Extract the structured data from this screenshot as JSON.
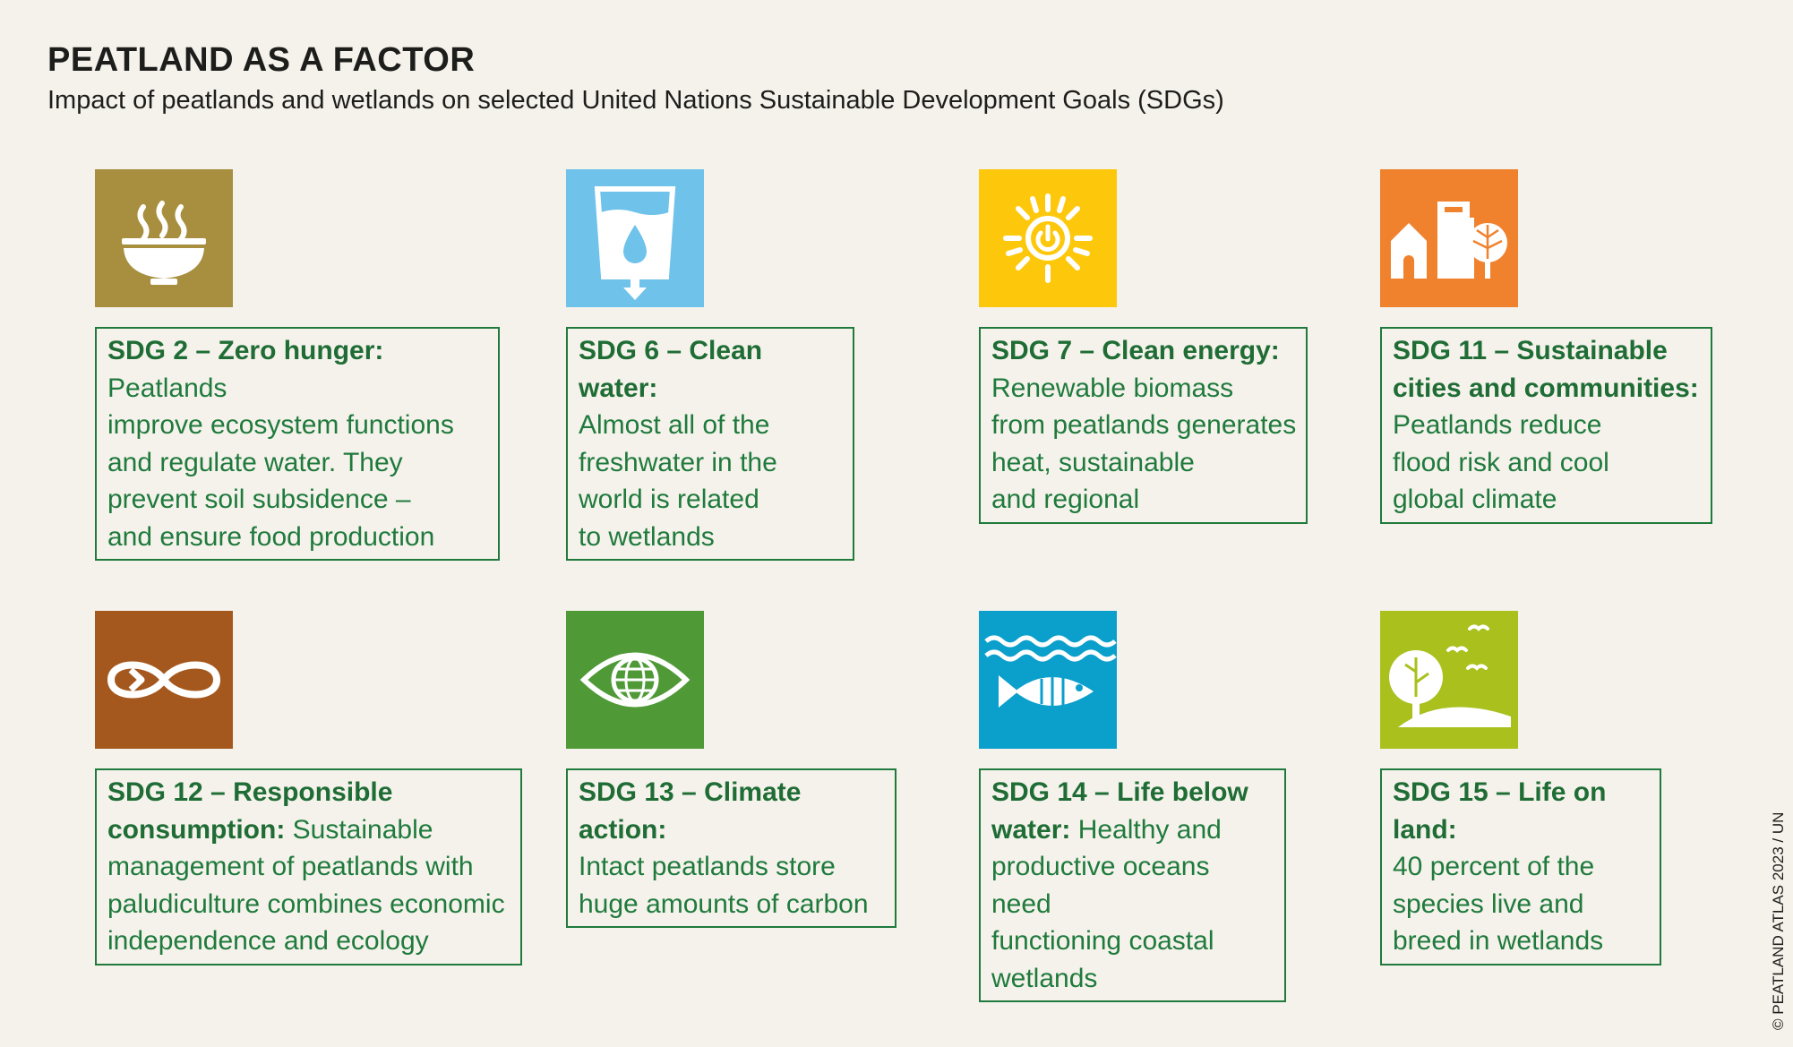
{
  "title": "PEATLAND AS A FACTOR",
  "subtitle": "Impact of peatlands and wetlands on selected United Nations Sustainable Development Goals (SDGs)",
  "sdgs": [
    {
      "id": 2,
      "icon": "food-bowl-icon",
      "color": "#a78f3f",
      "head": "SDG 2 – Zero hunger:",
      "lines": [
        "Peatlands",
        "improve ecosystem functions",
        "and regulate water. They",
        "prevent soil subsidence –",
        "and ensure food production"
      ]
    },
    {
      "id": 6,
      "icon": "water-glass-icon",
      "color": "#6fc2ea",
      "head": "SDG 6 – Clean water:",
      "lines": [
        "Almost all of the",
        "freshwater in the",
        "world is related",
        "to wetlands"
      ]
    },
    {
      "id": 7,
      "icon": "sun-power-icon",
      "color": "#fdc80c",
      "head": "SDG 7 – Clean energy:",
      "lines": [
        "Renewable biomass",
        "from peatlands generates",
        "heat, sustainable",
        "and regional"
      ]
    },
    {
      "id": 11,
      "icon": "city-icon",
      "color": "#f0812d",
      "head": "SDG 11 – Sustainable",
      "head2": "cities and communities:",
      "lines": [
        "Peatlands reduce",
        "flood risk and cool",
        "global climate"
      ]
    },
    {
      "id": 12,
      "icon": "infinity-loop-icon",
      "color": "#a5581e",
      "head": "SDG 12 – Responsible",
      "head2": "consumption:",
      "lines": [
        "Sustainable",
        "management of peatlands with",
        "paludiculture combines economic",
        "independence and ecology"
      ]
    },
    {
      "id": 13,
      "icon": "globe-eye-icon",
      "color": "#4f9a37",
      "head": "SDG 13 – Climate action:",
      "lines": [
        "Intact peatlands store",
        "huge amounts of carbon"
      ]
    },
    {
      "id": 14,
      "icon": "fish-waves-icon",
      "color": "#0b9fcc",
      "head": "SDG 14 – Life below",
      "head2": "water:",
      "lines": [
        "Healthy and",
        "productive oceans need",
        "functioning coastal",
        "wetlands"
      ]
    },
    {
      "id": 15,
      "icon": "tree-birds-icon",
      "color": "#a9c01d",
      "head": "SDG 15 – Life on land:",
      "lines": [
        "40 percent of the",
        "species live and",
        "breed in wetlands"
      ]
    }
  ],
  "copyright": "© PEATLAND ATLAS 2023 / UN"
}
